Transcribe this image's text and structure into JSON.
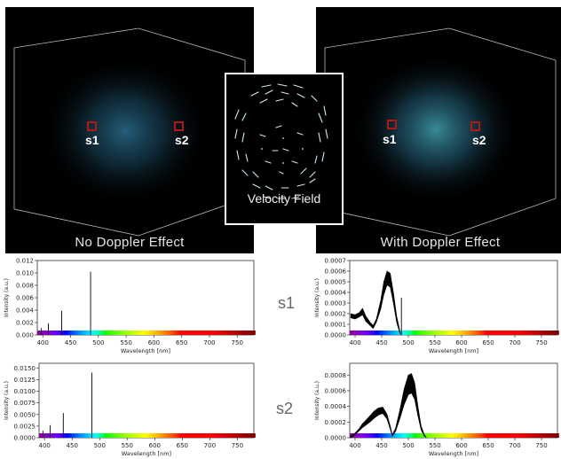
{
  "panels": {
    "left_caption": "No Doppler Effect",
    "right_caption": "With Doppler Effect",
    "center_caption": "Velocity Field",
    "left_glow": "#2a6f8f",
    "right_glow": "#3f9aa8"
  },
  "samples": {
    "s1": "s1",
    "s2": "s2",
    "box_color": "#b01818"
  },
  "rows": {
    "s1": "s1",
    "s2": "s2"
  },
  "chart_data": [
    {
      "type": "line",
      "name": "s1-no-doppler",
      "ylabel": "Intensity (a.u.)",
      "xlabel": "Wavelength [nm]",
      "xlim": [
        390,
        780
      ],
      "ylim": [
        0,
        0.012
      ],
      "yticks": [
        "0.000",
        "0.002",
        "0.004",
        "0.006",
        "0.008",
        "0.010",
        "0.012"
      ],
      "ytick_values": [
        0,
        0.002,
        0.004,
        0.006,
        0.008,
        0.01,
        0.012
      ],
      "xticks": [
        "400",
        "450",
        "500",
        "550",
        "600",
        "650",
        "700",
        "750"
      ],
      "xtick_values": [
        400,
        450,
        500,
        550,
        600,
        650,
        700,
        750
      ],
      "lines": [
        [
          397,
          0.0011
        ],
        [
          410,
          0.0019
        ],
        [
          434,
          0.0039
        ],
        [
          486,
          0.0102
        ]
      ]
    },
    {
      "type": "area",
      "name": "s1-doppler",
      "ylabel": "Intensity (a.u.)",
      "xlabel": "Wavelength [nm]",
      "xlim": [
        390,
        780
      ],
      "ylim": [
        0,
        0.0007
      ],
      "yticks": [
        "0.0000",
        "0.0001",
        "0.0002",
        "0.0003",
        "0.0004",
        "0.0005",
        "0.0006",
        "0.0007"
      ],
      "ytick_values": [
        0,
        0.0001,
        0.0002,
        0.0003,
        0.0004,
        0.0005,
        0.0006,
        0.0007
      ],
      "xticks": [
        "400",
        "450",
        "500",
        "550",
        "600",
        "650",
        "700",
        "750"
      ],
      "xtick_values": [
        400,
        450,
        500,
        550,
        600,
        650,
        700,
        750
      ],
      "upper": [
        [
          392,
          0.0002
        ],
        [
          400,
          0.00019
        ],
        [
          408,
          0.00021
        ],
        [
          414,
          0.00025
        ],
        [
          420,
          0.00018
        ],
        [
          428,
          0.00012
        ],
        [
          434,
          9e-05
        ],
        [
          440,
          0.00015
        ],
        [
          448,
          0.00032
        ],
        [
          454,
          0.0005
        ],
        [
          460,
          0.0006
        ],
        [
          466,
          0.00058
        ],
        [
          472,
          0.0004
        ],
        [
          478,
          0.00018
        ],
        [
          484,
          4e-05
        ],
        [
          486,
          0.0
        ]
      ],
      "lower": [
        [
          392,
          0.00016
        ],
        [
          400,
          0.00015
        ],
        [
          408,
          0.00017
        ],
        [
          414,
          0.00019
        ],
        [
          420,
          0.00013
        ],
        [
          428,
          9e-05
        ],
        [
          434,
          6e-05
        ],
        [
          440,
          0.00012
        ],
        [
          448,
          0.00024
        ],
        [
          454,
          0.00038
        ],
        [
          460,
          0.00047
        ],
        [
          466,
          0.00045
        ],
        [
          472,
          0.0003
        ],
        [
          478,
          0.00012
        ],
        [
          484,
          2e-05
        ],
        [
          486,
          0.0
        ]
      ],
      "lines": [
        [
          487,
          0.00035
        ]
      ]
    },
    {
      "type": "line",
      "name": "s2-no-doppler",
      "ylabel": "Intensity (a.u.)",
      "xlabel": "Wavelength [nm]",
      "xlim": [
        390,
        780
      ],
      "ylim": [
        0,
        0.016
      ],
      "yticks": [
        "0.0000",
        "0.0025",
        "0.0050",
        "0.0075",
        "0.0100",
        "0.0125",
        "0.0150"
      ],
      "ytick_values": [
        0,
        0.0025,
        0.005,
        0.0075,
        0.01,
        0.0125,
        0.015
      ],
      "xticks": [
        "400",
        "450",
        "500",
        "550",
        "600",
        "650",
        "700",
        "750"
      ],
      "xtick_values": [
        400,
        450,
        500,
        550,
        600,
        650,
        700,
        750
      ],
      "lines": [
        [
          397,
          0.0015
        ],
        [
          410,
          0.0027
        ],
        [
          434,
          0.0053
        ],
        [
          486,
          0.014
        ]
      ]
    },
    {
      "type": "area",
      "name": "s2-doppler",
      "ylabel": "Intensity (a.u.)",
      "xlabel": "Wavelength [nm]",
      "xlim": [
        390,
        780
      ],
      "ylim": [
        0,
        0.00095
      ],
      "yticks": [
        "0.0000",
        "0.0002",
        "0.0004",
        "0.0006",
        "0.0008"
      ],
      "ytick_values": [
        0,
        0.0002,
        0.0004,
        0.0006,
        0.0008
      ],
      "xticks": [
        "400",
        "450",
        "500",
        "550",
        "600",
        "650",
        "700",
        "750"
      ],
      "xtick_values": [
        400,
        450,
        500,
        550,
        600,
        650,
        700,
        750
      ],
      "upper": [
        [
          392,
          2e-05
        ],
        [
          400,
          6e-05
        ],
        [
          408,
          0.00012
        ],
        [
          414,
          0.00018
        ],
        [
          420,
          0.00022
        ],
        [
          428,
          0.00028
        ],
        [
          436,
          0.00034
        ],
        [
          444,
          0.00038
        ],
        [
          452,
          0.00039
        ],
        [
          460,
          0.0003
        ],
        [
          466,
          0.00015
        ],
        [
          470,
          4e-05
        ],
        [
          476,
          0.00012
        ],
        [
          484,
          0.00035
        ],
        [
          492,
          0.00062
        ],
        [
          500,
          0.0008
        ],
        [
          506,
          0.00082
        ],
        [
          512,
          0.0007
        ],
        [
          518,
          0.0004
        ],
        [
          524,
          0.00015
        ],
        [
          530,
          4e-05
        ],
        [
          534,
          0.0
        ]
      ],
      "lower": [
        [
          392,
          0.0
        ],
        [
          400,
          4e-05
        ],
        [
          408,
          9e-05
        ],
        [
          414,
          0.00013
        ],
        [
          420,
          0.00016
        ],
        [
          428,
          0.0002
        ],
        [
          436,
          0.00025
        ],
        [
          444,
          0.00029
        ],
        [
          452,
          0.00031
        ],
        [
          460,
          0.00024
        ],
        [
          466,
          0.00011
        ],
        [
          470,
          2e-05
        ],
        [
          476,
          8e-05
        ],
        [
          484,
          0.00024
        ],
        [
          492,
          0.00042
        ],
        [
          500,
          0.00055
        ],
        [
          506,
          0.00057
        ],
        [
          512,
          0.00049
        ],
        [
          518,
          0.00028
        ],
        [
          524,
          0.0001
        ],
        [
          530,
          2e-05
        ],
        [
          534,
          0.0
        ]
      ],
      "lines": []
    }
  ]
}
